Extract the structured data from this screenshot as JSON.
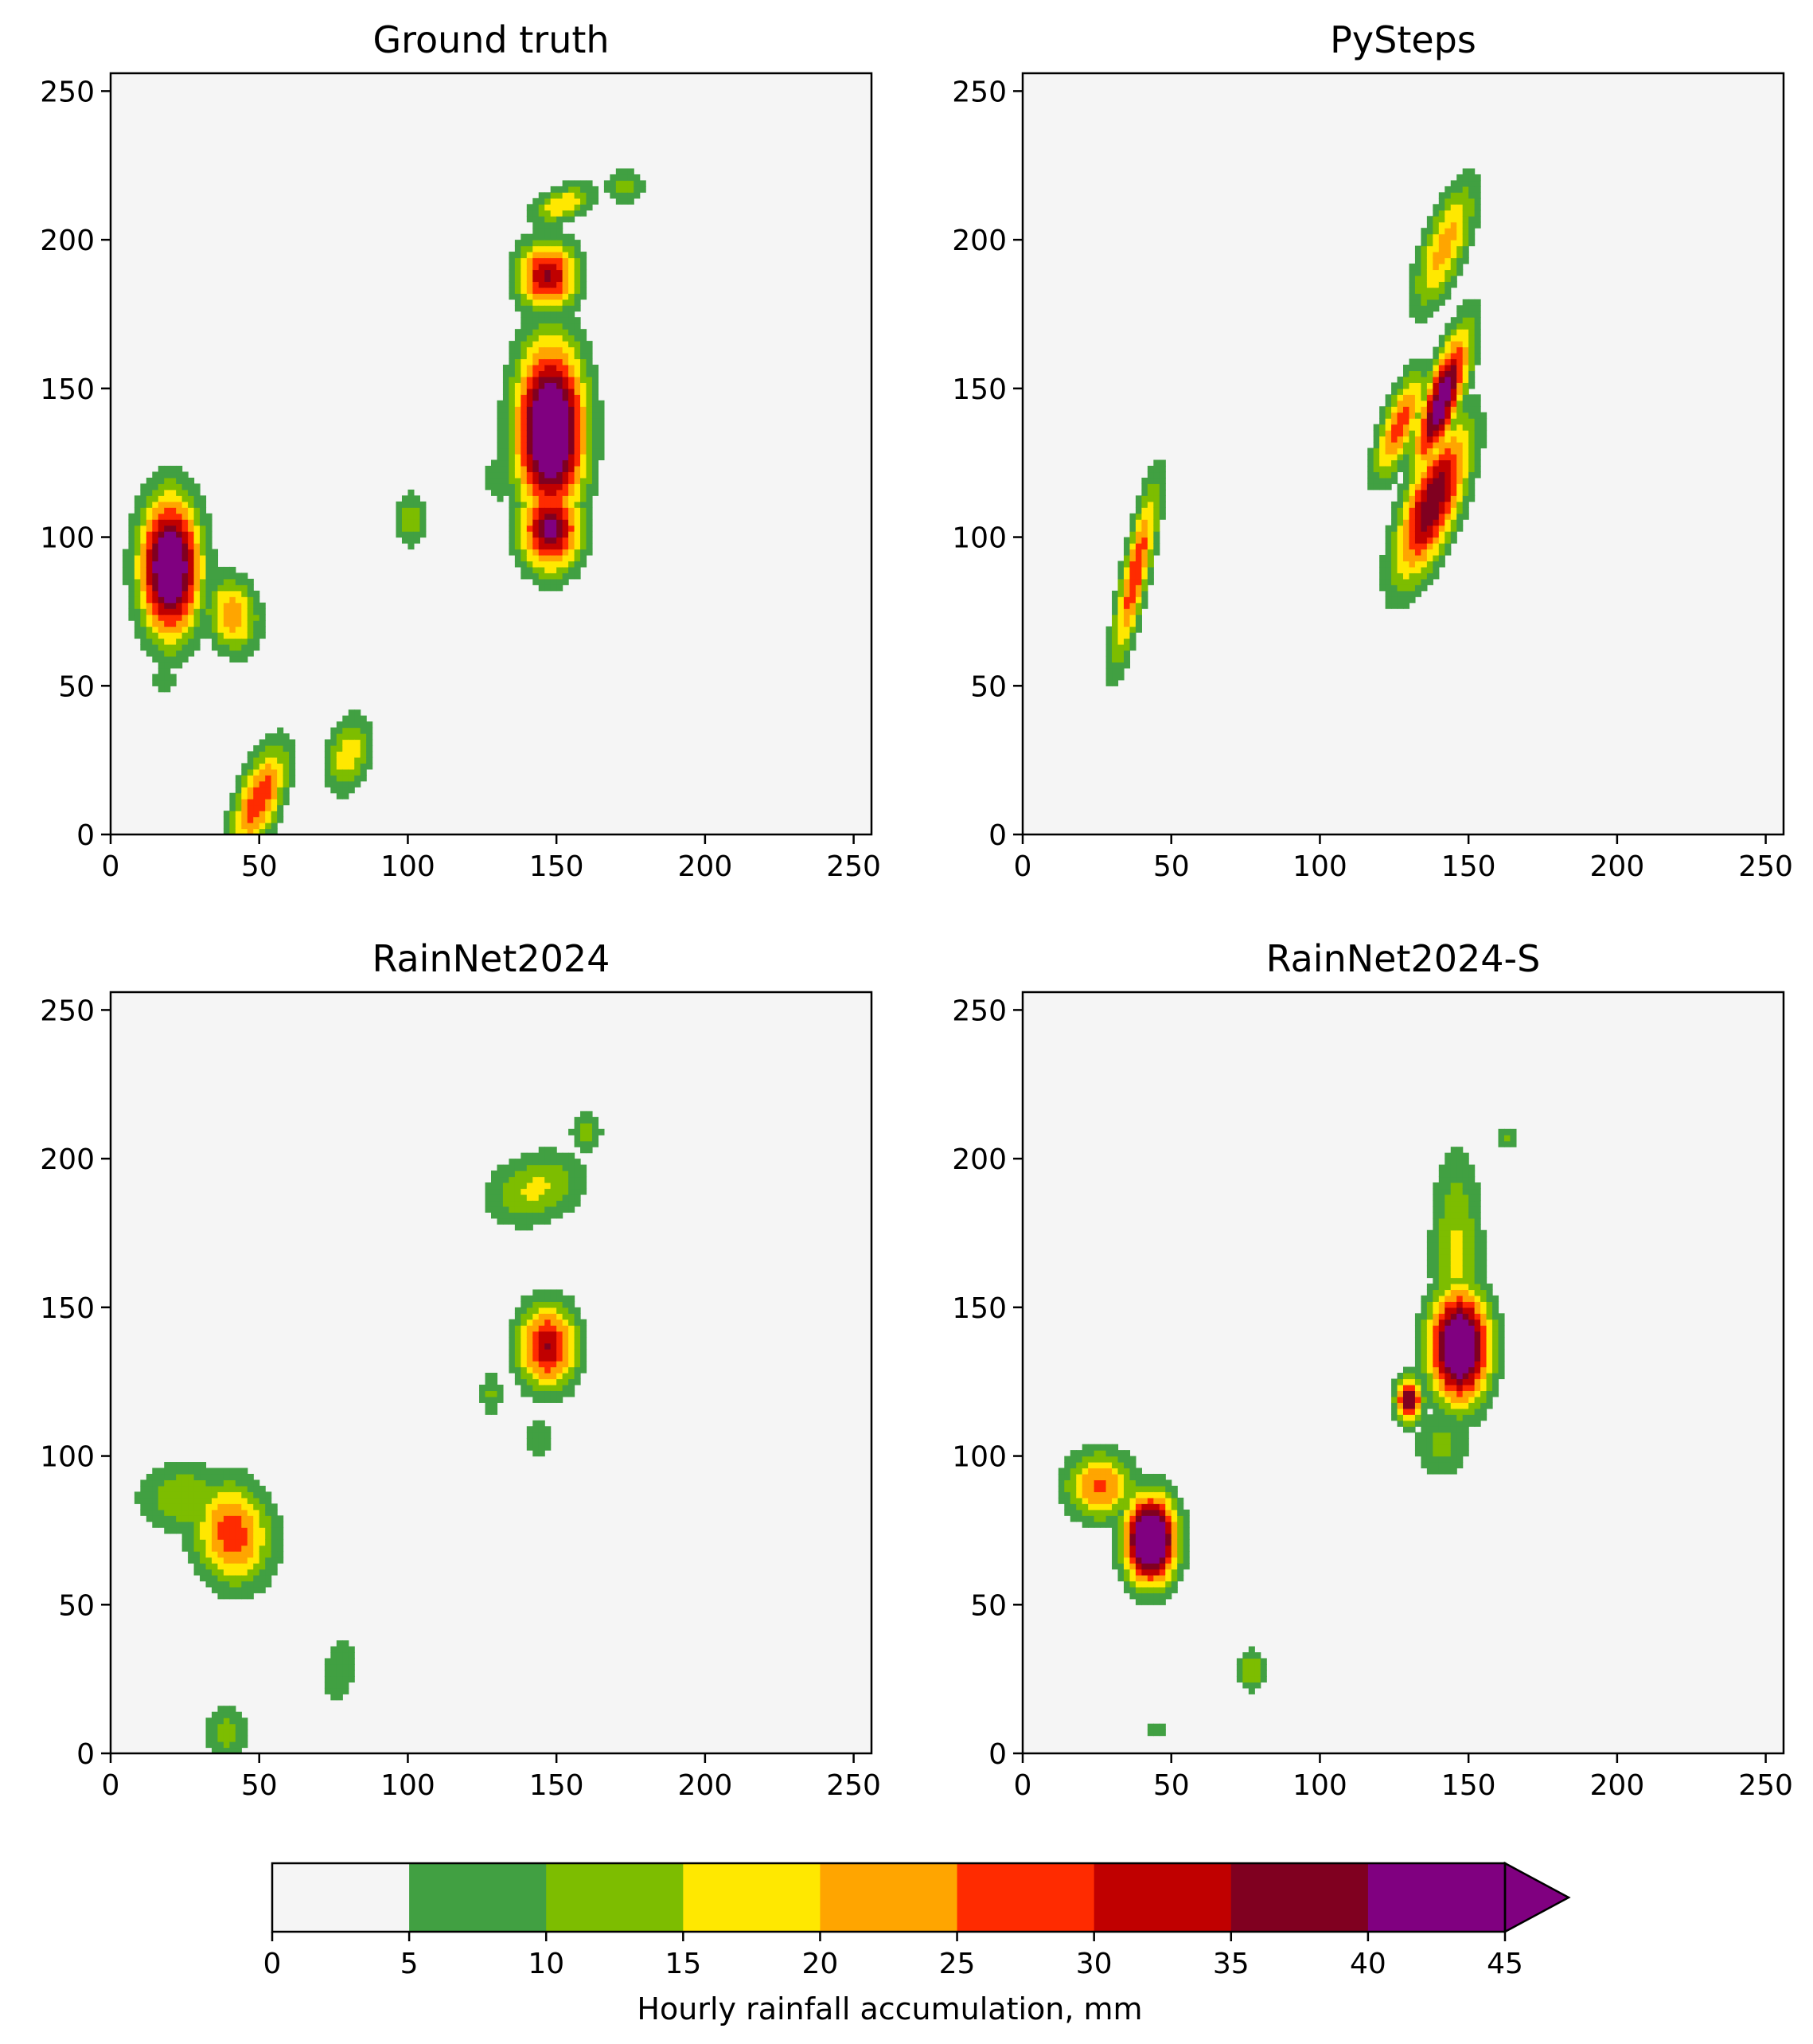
{
  "chart_data": {
    "type": "heatmap",
    "xlim": [
      0,
      256
    ],
    "ylim": [
      0,
      256
    ],
    "x_ticks": [
      "0",
      "50",
      "100",
      "150",
      "200",
      "250"
    ],
    "y_ticks": [
      "0",
      "50",
      "100",
      "150",
      "200",
      "250"
    ],
    "grid": false,
    "panels": [
      {
        "title": "Ground truth",
        "cells": [
          {
            "x": 20,
            "y": 90,
            "sx": 7,
            "sy": 16,
            "peak": 42,
            "rot": 0
          },
          {
            "x": 41,
            "y": 74,
            "sx": 6,
            "sy": 9,
            "peak": 19,
            "rot": -10
          },
          {
            "x": 50,
            "y": 12,
            "sx": 5,
            "sy": 13,
            "peak": 24,
            "rot": 20
          },
          {
            "x": 80,
            "y": 27,
            "sx": 5,
            "sy": 9,
            "peak": 15,
            "rot": 15
          },
          {
            "x": 101,
            "y": 106,
            "sx": 4,
            "sy": 7,
            "peak": 10,
            "rot": 0
          },
          {
            "x": 148,
            "y": 136,
            "sx": 8,
            "sy": 20,
            "peak": 44,
            "rot": 0
          },
          {
            "x": 148,
            "y": 103,
            "sx": 7,
            "sy": 10,
            "peak": 33,
            "rot": 0
          },
          {
            "x": 131,
            "y": 120,
            "sx": 4,
            "sy": 6,
            "peak": 8,
            "rot": 0
          },
          {
            "x": 147,
            "y": 188,
            "sx": 7,
            "sy": 8,
            "peak": 29,
            "rot": 0
          },
          {
            "x": 152,
            "y": 212,
            "sx": 8,
            "sy": 4,
            "peak": 15,
            "rot": -20
          },
          {
            "x": 173,
            "y": 218,
            "sx": 5,
            "sy": 5,
            "peak": 9,
            "rot": 0
          },
          {
            "x": 18,
            "y": 52,
            "sx": 4,
            "sy": 3,
            "peak": 8,
            "rot": 0
          }
        ]
      },
      {
        "title": "PySteps",
        "cells": [
          {
            "x": 38,
            "y": 88,
            "sx": 3,
            "sy": 21,
            "peak": 24,
            "rot": 12
          },
          {
            "x": 141,
            "y": 146,
            "sx": 4,
            "sy": 17,
            "peak": 36,
            "rot": 18
          },
          {
            "x": 138,
            "y": 112,
            "sx": 6,
            "sy": 19,
            "peak": 32,
            "rot": 20
          },
          {
            "x": 127,
            "y": 138,
            "sx": 4,
            "sy": 13,
            "peak": 23,
            "rot": 20
          },
          {
            "x": 142,
            "y": 198,
            "sx": 5,
            "sy": 16,
            "peak": 18,
            "rot": 20
          }
        ]
      },
      {
        "title": "RainNet2024",
        "cells": [
          {
            "x": 25,
            "y": 86,
            "sx": 11,
            "sy": 8,
            "peak": 12,
            "rot": 0
          },
          {
            "x": 41,
            "y": 74,
            "sx": 9,
            "sy": 12,
            "peak": 23,
            "rot": -10
          },
          {
            "x": 39,
            "y": 7,
            "sx": 5,
            "sy": 7,
            "peak": 10,
            "rot": 0
          },
          {
            "x": 77,
            "y": 28,
            "sx": 4,
            "sy": 9,
            "peak": 8,
            "rot": 10
          },
          {
            "x": 147,
            "y": 137,
            "sx": 7,
            "sy": 10,
            "peak": 28,
            "rot": 0
          },
          {
            "x": 143,
            "y": 190,
            "sx": 12,
            "sy": 8,
            "peak": 13,
            "rot": -20
          },
          {
            "x": 160,
            "y": 209,
            "sx": 4,
            "sy": 5,
            "peak": 9,
            "rot": 0
          },
          {
            "x": 128,
            "y": 121,
            "sx": 3,
            "sy": 5,
            "peak": 9,
            "rot": 0
          },
          {
            "x": 144,
            "y": 106,
            "sx": 3,
            "sy": 5,
            "peak": 8,
            "rot": 0
          }
        ]
      },
      {
        "title": "RainNet2024-S",
        "cells": [
          {
            "x": 26,
            "y": 90,
            "sx": 8,
            "sy": 8,
            "peak": 21,
            "rot": 0
          },
          {
            "x": 43,
            "y": 72,
            "sx": 6,
            "sy": 10,
            "peak": 47,
            "rot": 0
          },
          {
            "x": 147,
            "y": 137,
            "sx": 7,
            "sy": 13,
            "peak": 44,
            "rot": 0
          },
          {
            "x": 146,
            "y": 168,
            "sx": 6,
            "sy": 24,
            "peak": 13,
            "rot": 0
          },
          {
            "x": 141,
            "y": 104,
            "sx": 7,
            "sy": 8,
            "peak": 9,
            "rot": 0
          },
          {
            "x": 130,
            "y": 119,
            "sx": 3,
            "sy": 5,
            "peak": 33,
            "rot": 0
          },
          {
            "x": 77,
            "y": 28,
            "sx": 3,
            "sy": 5,
            "peak": 12,
            "rot": 0
          },
          {
            "x": 163,
            "y": 207,
            "sx": 3,
            "sy": 3,
            "peak": 8,
            "rot": 0
          },
          {
            "x": 45,
            "y": 8,
            "sx": 2,
            "sy": 2,
            "peak": 8,
            "rot": 0
          }
        ]
      }
    ],
    "colorbar": {
      "label": "Hourly rainfall accumulation, mm",
      "bounds": [
        0,
        5,
        10,
        15,
        20,
        25,
        30,
        35,
        40,
        45
      ],
      "tick_labels": [
        "0",
        "5",
        "10",
        "15",
        "20",
        "25",
        "30",
        "35",
        "40",
        "45"
      ],
      "colors": [
        "#f5f5f5",
        "#41a042",
        "#7dbd00",
        "#ffe800",
        "#ffa500",
        "#ff2b00",
        "#c00000",
        "#800020",
        "#800080"
      ],
      "extend": "max"
    }
  }
}
